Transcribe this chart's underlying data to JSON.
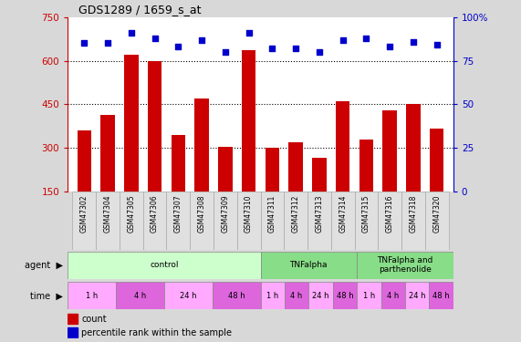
{
  "title": "GDS1289 / 1659_s_at",
  "samples": [
    "GSM47302",
    "GSM47304",
    "GSM47305",
    "GSM47306",
    "GSM47307",
    "GSM47308",
    "GSM47309",
    "GSM47310",
    "GSM47311",
    "GSM47312",
    "GSM47313",
    "GSM47314",
    "GSM47315",
    "GSM47316",
    "GSM47318",
    "GSM47320"
  ],
  "counts": [
    360,
    415,
    620,
    600,
    345,
    470,
    305,
    635,
    302,
    320,
    265,
    460,
    330,
    430,
    450,
    365
  ],
  "percentiles": [
    85,
    85,
    91,
    88,
    83,
    87,
    80,
    91,
    82,
    82,
    80,
    87,
    88,
    83,
    86,
    84
  ],
  "ylim_left": [
    150,
    750
  ],
  "ylim_right": [
    0,
    100
  ],
  "yticks_left": [
    150,
    300,
    450,
    600,
    750
  ],
  "yticks_right": [
    0,
    25,
    50,
    75,
    100
  ],
  "bar_color": "#cc0000",
  "dot_color": "#0000cc",
  "bar_width": 0.6,
  "agent_groups": [
    {
      "label": "control",
      "start": 0,
      "end": 8,
      "color": "#ccffcc"
    },
    {
      "label": "TNFalpha",
      "start": 8,
      "end": 12,
      "color": "#88dd88"
    },
    {
      "label": "TNFalpha and\nparthenolide",
      "start": 12,
      "end": 16,
      "color": "#88dd88"
    }
  ],
  "time_groups": [
    {
      "label": "1 h",
      "start": 0,
      "end": 2,
      "color": "#ffaaff"
    },
    {
      "label": "4 h",
      "start": 2,
      "end": 4,
      "color": "#dd66dd"
    },
    {
      "label": "24 h",
      "start": 4,
      "end": 6,
      "color": "#ffaaff"
    },
    {
      "label": "48 h",
      "start": 6,
      "end": 8,
      "color": "#dd66dd"
    },
    {
      "label": "1 h",
      "start": 8,
      "end": 9,
      "color": "#ffaaff"
    },
    {
      "label": "4 h",
      "start": 9,
      "end": 10,
      "color": "#dd66dd"
    },
    {
      "label": "24 h",
      "start": 10,
      "end": 11,
      "color": "#ffaaff"
    },
    {
      "label": "48 h",
      "start": 11,
      "end": 12,
      "color": "#dd66dd"
    },
    {
      "label": "1 h",
      "start": 12,
      "end": 13,
      "color": "#ffaaff"
    },
    {
      "label": "4 h",
      "start": 13,
      "end": 14,
      "color": "#dd66dd"
    },
    {
      "label": "24 h",
      "start": 14,
      "end": 15,
      "color": "#ffaaff"
    },
    {
      "label": "48 h",
      "start": 15,
      "end": 16,
      "color": "#dd66dd"
    }
  ],
  "background_color": "#d8d8d8",
  "plot_bg": "#ffffff",
  "bar_color_left": "#cc0000",
  "bar_color_right": "#0000cc",
  "grid_dotted_at": [
    300,
    450,
    600
  ],
  "dot_size": 20
}
